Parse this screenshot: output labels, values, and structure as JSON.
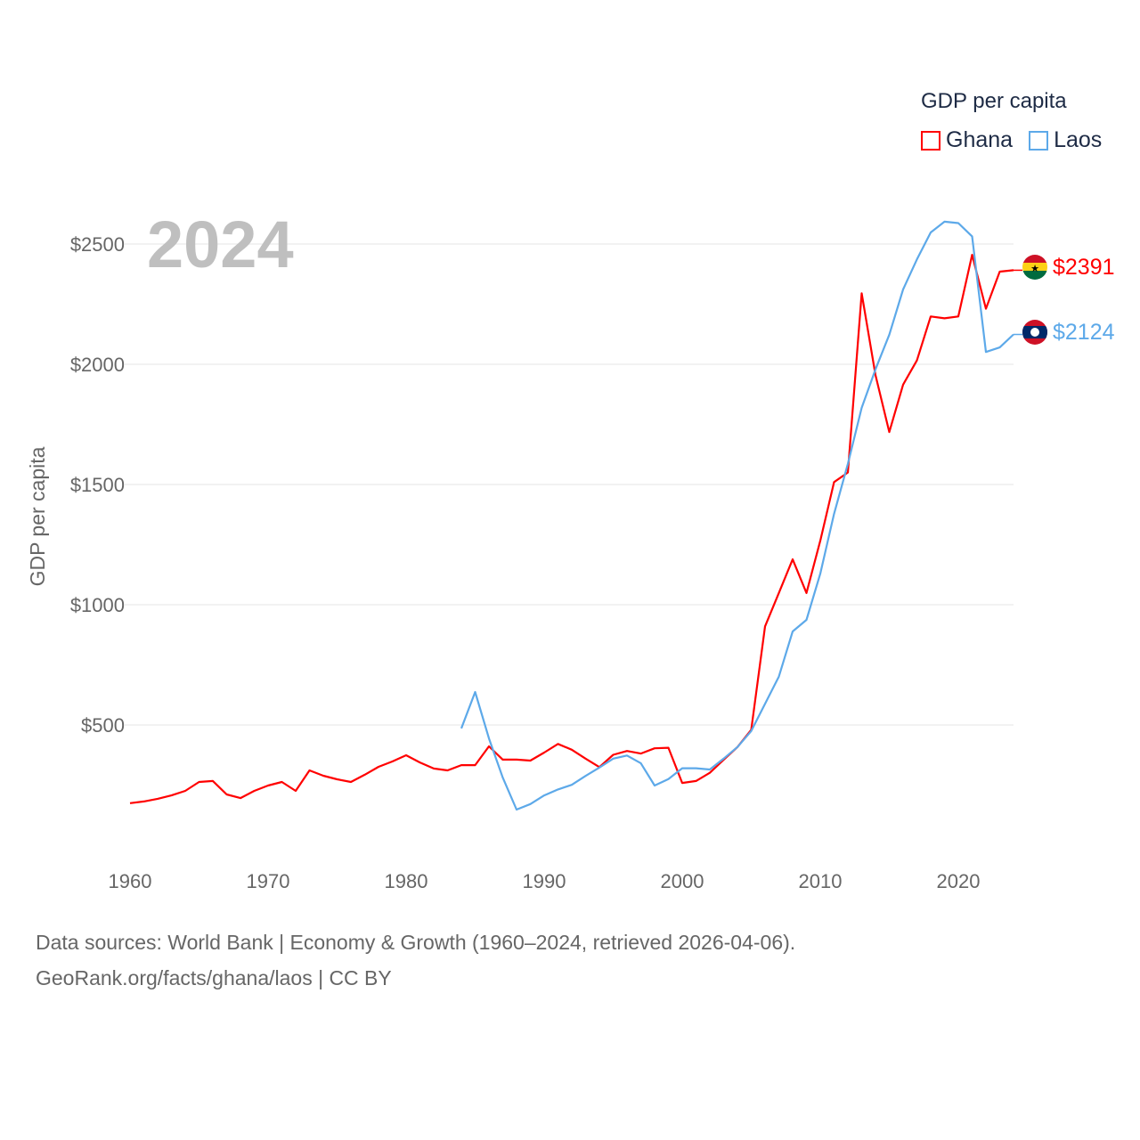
{
  "chart_data": {
    "type": "line",
    "title": "GDP per capita",
    "ylabel": "GDP per capita",
    "xlabel": "",
    "year_label": "2024",
    "ylim": [
      0,
      2600
    ],
    "xlim": [
      1960,
      2024
    ],
    "y_ticks": [
      500,
      1000,
      1500,
      2000,
      2500
    ],
    "y_tick_labels": [
      "$500",
      "$1000",
      "$1500",
      "$2000",
      "$2500"
    ],
    "x_ticks": [
      1960,
      1970,
      1980,
      1990,
      2000,
      2010,
      2020
    ],
    "x_tick_labels": [
      "1960",
      "1970",
      "1980",
      "1990",
      "2000",
      "2010",
      "2020"
    ],
    "grid": true,
    "legend_placement": "top-right",
    "series": [
      {
        "name": "Ghana",
        "color": "#ff0000",
        "end_label": "$2391",
        "start_year": 1960,
        "values": [
          175,
          182,
          193,
          207,
          226,
          263,
          267,
          211,
          196,
          226,
          248,
          263,
          226,
          311,
          289,
          274,
          263,
          293,
          326,
          348,
          374,
          344,
          319,
          311,
          333,
          333,
          411,
          356,
          356,
          352,
          385,
          421,
          397,
          360,
          325,
          376,
          392,
          381,
          403,
          405,
          259,
          267,
          301,
          355,
          408,
          480,
          910,
          1049,
          1189,
          1049,
          1266,
          1510,
          1550,
          2295,
          1955,
          1718,
          1915,
          2016,
          2199,
          2191,
          2199,
          2455,
          2231,
          2385,
          2391
        ]
      },
      {
        "name": "Laos",
        "color": "#5da9e9",
        "end_label": "$2124",
        "start_year": 1984,
        "values": [
          486,
          637,
          444,
          281,
          148,
          171,
          207,
          232,
          251,
          288,
          323,
          360,
          373,
          341,
          248,
          275,
          320,
          320,
          315,
          360,
          408,
          475,
          588,
          701,
          889,
          937,
          1129,
          1378,
          1586,
          1819,
          1979,
          2123,
          2311,
          2436,
          2548,
          2593,
          2587,
          2532,
          2051,
          2070,
          2124
        ]
      }
    ]
  },
  "footer": {
    "line1": "Data sources: World Bank | Economy & Growth (1960–2024, retrieved 2026-04-06).",
    "line2": "GeoRank.org/facts/ghana/laos | CC BY"
  }
}
